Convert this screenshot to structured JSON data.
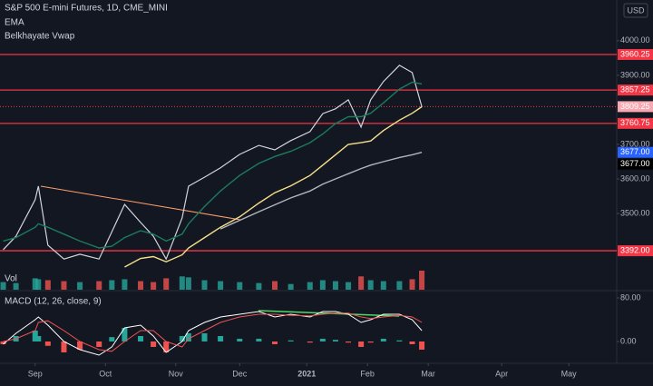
{
  "chart_data": [
    {
      "type": "line",
      "title": "S&P 500 E-mini Futures, 1D, CME_MINI",
      "currency": "USD",
      "x": [
        -10,
        -6,
        0,
        1,
        4,
        9,
        14,
        20,
        24,
        28,
        33,
        37,
        41,
        46,
        48,
        53,
        58,
        64,
        70,
        75,
        80,
        86,
        90,
        94,
        98,
        102,
        105,
        109,
        114,
        118,
        121
      ],
      "series": [
        {
          "color": "#d1d4dc",
          "values": [
            3395,
            3434,
            3540,
            3579,
            3408,
            3368,
            3382,
            3368,
            3447,
            3526,
            3474,
            3434,
            3368,
            3487,
            3579,
            3605,
            3632,
            3671,
            3697,
            3684,
            3711,
            3737,
            3789,
            3803,
            3829,
            3750,
            3829,
            3882,
            3929,
            3908,
            3809
          ]
        },
        {
          "name": "EMA",
          "color": "#1b7c5c",
          "values": [
            3420,
            3430,
            3460,
            3470,
            3460,
            3440,
            3420,
            3400,
            3405,
            3430,
            3450,
            3440,
            3420,
            3440,
            3470,
            3520,
            3565,
            3610,
            3645,
            3665,
            3680,
            3705,
            3730,
            3760,
            3780,
            3780,
            3790,
            3820,
            3860,
            3880,
            3875
          ]
        },
        {
          "name": "Belkhayate Vwap",
          "color": "#f7e08a",
          "values": [
            null,
            null,
            null,
            null,
            null,
            null,
            null,
            null,
            null,
            3345,
            3370,
            3375,
            3360,
            3380,
            3400,
            3430,
            3460,
            3490,
            3530,
            3560,
            3580,
            3610,
            3640,
            3670,
            3700,
            3705,
            3710,
            3740,
            3770,
            3790,
            3809
          ]
        },
        {
          "color": "#b2b5be",
          "values": [
            null,
            null,
            null,
            null,
            null,
            null,
            null,
            null,
            null,
            null,
            null,
            null,
            null,
            null,
            null,
            null,
            3455,
            3480,
            3505,
            3525,
            3545,
            3565,
            3585,
            3600,
            3615,
            3630,
            3640,
            3650,
            3662,
            3670,
            3677
          ]
        }
      ],
      "xlim": [
        -11,
        182
      ],
      "xticks": [
        {
          "value": 0,
          "label": "Sep"
        },
        {
          "value": 22,
          "label": "Oct"
        },
        {
          "value": 44,
          "label": "Nov"
        },
        {
          "value": 64,
          "label": "Dec"
        },
        {
          "value": 85,
          "label": "2021"
        },
        {
          "value": 104,
          "label": "Feb"
        },
        {
          "value": 123,
          "label": "Mar"
        },
        {
          "value": 146,
          "label": "Apr"
        },
        {
          "value": 167,
          "label": "May"
        }
      ],
      "ylim": [
        3337,
        4118
      ],
      "yticks": [
        {
          "value": 4000,
          "label": "4000.00"
        },
        {
          "value": 3900,
          "label": "3900.00"
        },
        {
          "value": 3700,
          "label": "3700.00"
        },
        {
          "value": 3600,
          "label": "3600.00"
        },
        {
          "value": 3500,
          "label": "3500.00"
        }
      ],
      "levels": {
        "color": "#f23645",
        "values": [
          3960.25,
          3857.25,
          3809.25,
          3760.75,
          3392
        ],
        "value_labels": [
          "3960.25",
          "3857.25",
          "3809.25",
          "3760.75",
          "3392.00"
        ]
      },
      "price_labels": {
        "colors": [
          "#2962ff",
          "#000000"
        ],
        "values": [
          3677,
          3677
        ],
        "value_labels": [
          "3677.00",
          "3677.00"
        ]
      }
    },
    {
      "type": "bar",
      "title": "Vol",
      "colors": [
        "#26a69a",
        "#ef5350"
      ],
      "values": [
        40,
        35,
        60,
        55,
        50,
        45,
        40,
        45,
        50,
        55,
        45,
        40,
        60,
        70,
        65,
        50,
        45,
        40,
        35,
        45,
        30,
        40,
        50,
        45,
        40,
        70,
        50,
        45,
        45,
        55,
        100
      ],
      "ylim": [
        0,
        100
      ]
    },
    {
      "type": "macd",
      "title": "MACD (12, 26, close, 9)",
      "series": [
        {
          "color": "#ffffff",
          "values": [
            -5,
            15,
            40,
            45,
            30,
            0,
            -15,
            -25,
            -10,
            25,
            30,
            10,
            -20,
            0,
            20,
            35,
            45,
            50,
            55,
            45,
            50,
            45,
            55,
            55,
            50,
            35,
            40,
            50,
            50,
            40,
            20
          ]
        },
        {
          "color": "#ef5350",
          "values": [
            0,
            5,
            20,
            35,
            38,
            20,
            0,
            -15,
            -18,
            0,
            20,
            20,
            0,
            -10,
            5,
            20,
            35,
            45,
            50,
            50,
            48,
            47,
            50,
            52,
            52,
            45,
            42,
            45,
            48,
            45,
            35
          ]
        }
      ],
      "histogram": {
        "colors": [
          "#26a69a",
          "#ef5350"
        ],
        "values": [
          -5,
          10,
          20,
          10,
          -8,
          -20,
          -15,
          -10,
          8,
          25,
          10,
          -10,
          -20,
          10,
          15,
          15,
          10,
          5,
          5,
          -5,
          2,
          -2,
          5,
          3,
          -2,
          -10,
          -2,
          5,
          2,
          -5,
          -15
        ]
      },
      "ylim": [
        -36.7,
        90
      ],
      "yticks": [
        {
          "value": 80,
          "label": "80.00"
        },
        {
          "value": 0,
          "label": "0.00"
        }
      ]
    }
  ]
}
